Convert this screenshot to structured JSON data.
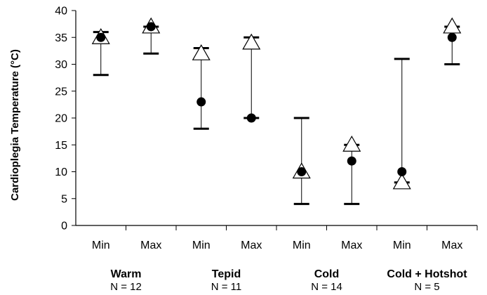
{
  "chart_data": {
    "type": "scatter",
    "title": "",
    "xlabel": "",
    "ylabel": "Cardioplegia Temperature (°C)",
    "ylim": [
      0,
      40
    ],
    "yticks": [
      0,
      5,
      10,
      15,
      20,
      25,
      30,
      35,
      40
    ],
    "grid": false,
    "categories": [
      "Min",
      "Max",
      "Min",
      "Max",
      "Min",
      "Max",
      "Min",
      "Max"
    ],
    "groups": [
      {
        "name": "Warm",
        "n_label": "N = 12"
      },
      {
        "name": "Tepid",
        "n_label": "N = 11"
      },
      {
        "name": "Cold",
        "n_label": "N = 14"
      },
      {
        "name": "Cold + Hotshot",
        "n_label": "N = 5"
      }
    ],
    "range_low": [
      28,
      32,
      18,
      20,
      4,
      4,
      8,
      30
    ],
    "range_high": [
      36,
      37,
      33,
      35,
      20,
      15,
      31,
      37
    ],
    "series": [
      {
        "marker": "triangle-open",
        "values": [
          35,
          37,
          32,
          34,
          10,
          15,
          8,
          37
        ]
      },
      {
        "marker": "circle-filled",
        "values": [
          35,
          37,
          23,
          20,
          10,
          12,
          10,
          35
        ]
      }
    ]
  }
}
